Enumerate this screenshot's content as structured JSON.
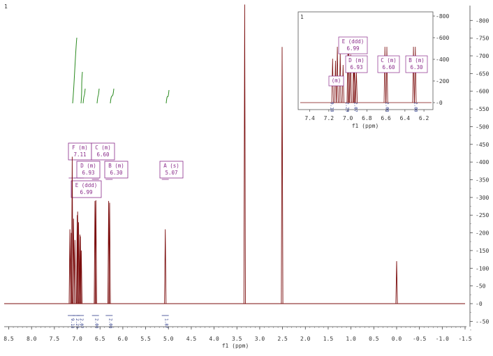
{
  "chart_data": {
    "type": "line",
    "xlabel": "f1 (ppm)",
    "corner_label": "1",
    "x_reversed": true,
    "xlim": [
      8.6,
      -1.5
    ],
    "ylim": [
      -70,
      845
    ],
    "x_ticks": [
      "8.5",
      "8.0",
      "7.5",
      "7.0",
      "6.5",
      "6.0",
      "5.5",
      "5.0",
      "4.5",
      "4.0",
      "3.5",
      "3.0",
      "2.5",
      "2.0",
      "1.5",
      "1.0",
      "0.5",
      "0.0",
      "-0.5",
      "-1.0",
      "-1.5"
    ],
    "y_ticks": [
      "800",
      "750",
      "700",
      "650",
      "600",
      "550",
      "500",
      "450",
      "400",
      "350",
      "300",
      "250",
      "200",
      "150",
      "100",
      "50",
      "0",
      "-50"
    ],
    "spectrum_color": "#7b0d0d",
    "peaks": [
      {
        "ppm": 7.16,
        "h": 210
      },
      {
        "ppm": 7.13,
        "h": 200
      },
      {
        "ppm": 7.11,
        "h": 415
      },
      {
        "ppm": 7.08,
        "h": 240
      },
      {
        "ppm": 7.05,
        "h": 180
      },
      {
        "ppm": 7.0,
        "h": 250
      },
      {
        "ppm": 6.99,
        "h": 260
      },
      {
        "ppm": 6.97,
        "h": 230
      },
      {
        "ppm": 6.94,
        "h": 195
      },
      {
        "ppm": 6.93,
        "h": 190
      },
      {
        "ppm": 6.91,
        "h": 150
      },
      {
        "ppm": 6.61,
        "h": 290
      },
      {
        "ppm": 6.59,
        "h": 292
      },
      {
        "ppm": 6.31,
        "h": 290
      },
      {
        "ppm": 6.29,
        "h": 285
      },
      {
        "ppm": 5.07,
        "h": 210
      },
      {
        "ppm": 3.33,
        "h": 845
      },
      {
        "ppm": 2.51,
        "h": 725
      },
      {
        "ppm": 0.0,
        "h": 120
      }
    ],
    "multiplets": [
      {
        "id": "F",
        "type": "m",
        "shift": "7.11",
        "label": "F (m)\n7.11"
      },
      {
        "id": "D",
        "type": "m",
        "shift": "6.93",
        "label": "D (m)\n6.93"
      },
      {
        "id": "E",
        "type": "ddd",
        "shift": "6.99",
        "label": "E (ddd)\n6.99"
      },
      {
        "id": "C",
        "type": "m",
        "shift": "6.60",
        "label": "C (m)\n6.60"
      },
      {
        "id": "B",
        "type": "m",
        "shift": "6.30",
        "label": "B (m)\n6.30"
      },
      {
        "id": "A",
        "type": "s",
        "shift": "5.07",
        "label": "A (s)\n5.07"
      }
    ],
    "integrals": [
      {
        "ppm": 7.13,
        "value": "9.18"
      },
      {
        "ppm": 7.02,
        "value": "2.29"
      },
      {
        "ppm": 6.93,
        "value": "2.07"
      },
      {
        "ppm": 6.6,
        "value": "2.00"
      },
      {
        "ppm": 6.3,
        "value": "2.00"
      },
      {
        "ppm": 5.07,
        "value": "1.87"
      }
    ],
    "inset": {
      "corner_label": "1",
      "xlabel": "f1 (ppm)",
      "xlim": [
        7.5,
        6.12
      ],
      "ylim": [
        -30,
        850
      ],
      "x_ticks": [
        "7.4",
        "7.2",
        "7.0",
        "6.8",
        "6.6",
        "6.4",
        "6.2"
      ],
      "y_ticks": [
        "800",
        "600",
        "400",
        "200",
        "0"
      ],
      "integrals": [
        {
          "ppm": 7.18,
          "value": "9.18"
        },
        {
          "ppm": 7.02,
          "value": "2.29"
        },
        {
          "ppm": 6.93,
          "value": "2.07"
        },
        {
          "ppm": 6.6,
          "value": "2.00"
        },
        {
          "ppm": 6.3,
          "value": "2.00"
        }
      ],
      "labels": [
        {
          "id": "E",
          "text": "E (ddd)\n6.99"
        },
        {
          "id": "D",
          "text": "D (m)\n6.93"
        },
        {
          "id": "C",
          "text": "C (m)\n6.60"
        },
        {
          "id": "B",
          "text": "B (m)\n6.30"
        },
        {
          "id": "F",
          "text": "(m)"
        }
      ]
    }
  }
}
